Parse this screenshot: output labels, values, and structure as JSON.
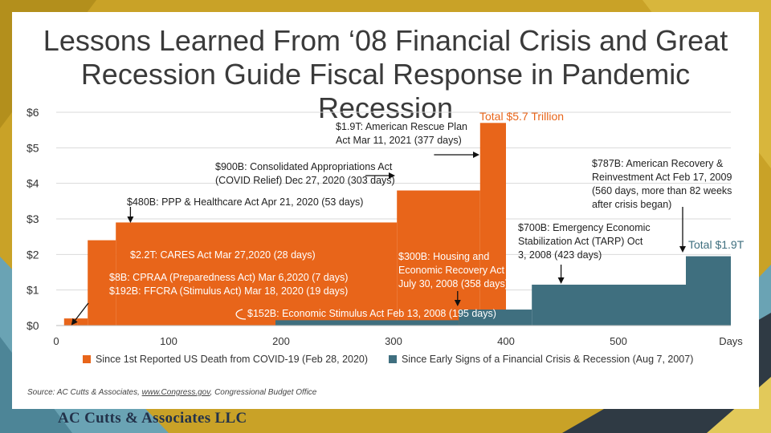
{
  "title_line1": "Lessons Learned From ‘08 Financial Crisis and Great",
  "title_line2": "Recession Guide Fiscal Response in Pandemic Recession",
  "colors": {
    "covid": "#e8651a",
    "recession": "#3f6f7f",
    "frame_gold": "#c9a227",
    "frame_teal": "#6aa3b4",
    "frame_dark": "#2f3a44"
  },
  "chart_data": {
    "type": "area",
    "x_tick_labels": [
      "0",
      "100",
      "200",
      "300",
      "400",
      "500"
    ],
    "x_tick_values": [
      0,
      100,
      200,
      300,
      400,
      500
    ],
    "x_unit_label": "Days",
    "y_tick_labels": [
      "$0",
      "$1",
      "$2",
      "$3",
      "$4",
      "$5",
      "$6"
    ],
    "y_tick_values": [
      0,
      1,
      2,
      3,
      4,
      5,
      6
    ],
    "ylim": [
      0,
      6
    ],
    "xlim": [
      0,
      600
    ],
    "legend_position": "bottom",
    "series": [
      {
        "name": "Since 1st Reported US Death from COVID-19 (Feb 28, 2020)",
        "color": "#e8651a",
        "steps": [
          {
            "day": 7,
            "cumulative_trillions": 0.2
          },
          {
            "day": 19,
            "cumulative_trillions": 0.2
          },
          {
            "day": 28,
            "cumulative_trillions": 2.4
          },
          {
            "day": 53,
            "cumulative_trillions": 2.9
          },
          {
            "day": 303,
            "cumulative_trillions": 3.8
          },
          {
            "day": 377,
            "cumulative_trillions": 5.7
          },
          {
            "day": 400,
            "cumulative_trillions": 5.7
          }
        ]
      },
      {
        "name": "Since Early Signs of a Financial Crisis & Recession (Aug 7, 2007)",
        "color": "#3f6f7f",
        "steps": [
          {
            "day": 195,
            "cumulative_trillions": 0.15
          },
          {
            "day": 358,
            "cumulative_trillions": 0.45
          },
          {
            "day": 423,
            "cumulative_trillions": 1.15
          },
          {
            "day": 560,
            "cumulative_trillions": 1.95
          },
          {
            "day": 600,
            "cumulative_trillions": 1.95
          }
        ]
      }
    ],
    "annotations": {
      "cpraa": "$8B: CPRAA (Preparedness Act) Mar 6,2020 (7 days)",
      "ffcra": "$192B: FFCRA (Stimulus Act) Mar 18, 2020 (19 days)",
      "cares": "$2.2T: CARES Act Mar 27,2020 (28 days)",
      "ppp": "$480B: PPP & Healthcare Act Apr 21, 2020 (53 days)",
      "caa_1": "$900B: Consolidated Appropriations Act",
      "caa_2": "(COVID Relief) Dec 27, 2020 (303 days)",
      "arp_1": "$1.9T: American Rescue Plan",
      "arp_2": "Act Mar 11, 2021 (377 days)",
      "total_covid": "Total $5.7 Trillion",
      "esa": "$152B: Economic Stimulus Act Feb 13, 2008 (195 days)",
      "hera_1": "$300B: Housing and",
      "hera_2": "Economic Recovery Act",
      "hera_3": "July 30, 2008 (358 days)",
      "tarp_1": "$700B: Emergency Economic",
      "tarp_2": "Stabilization Act (TARP) Oct",
      "tarp_3": "3, 2008 (423 days)",
      "arra_1": "$787B: American Recovery &",
      "arra_2": "Reinvestment Act  Feb 17, 2009",
      "arra_3": "(560 days, more than 82 weeks",
      "arra_4": "after crisis began)",
      "total_recession": "Total $1.9T"
    }
  },
  "source_prefix": "Source: AC Cutts & Associates, ",
  "source_link": "www.Congress.gov",
  "source_suffix": ",  Congressional Budget Office",
  "logo_text": "AC Cutts & Associates LLC"
}
